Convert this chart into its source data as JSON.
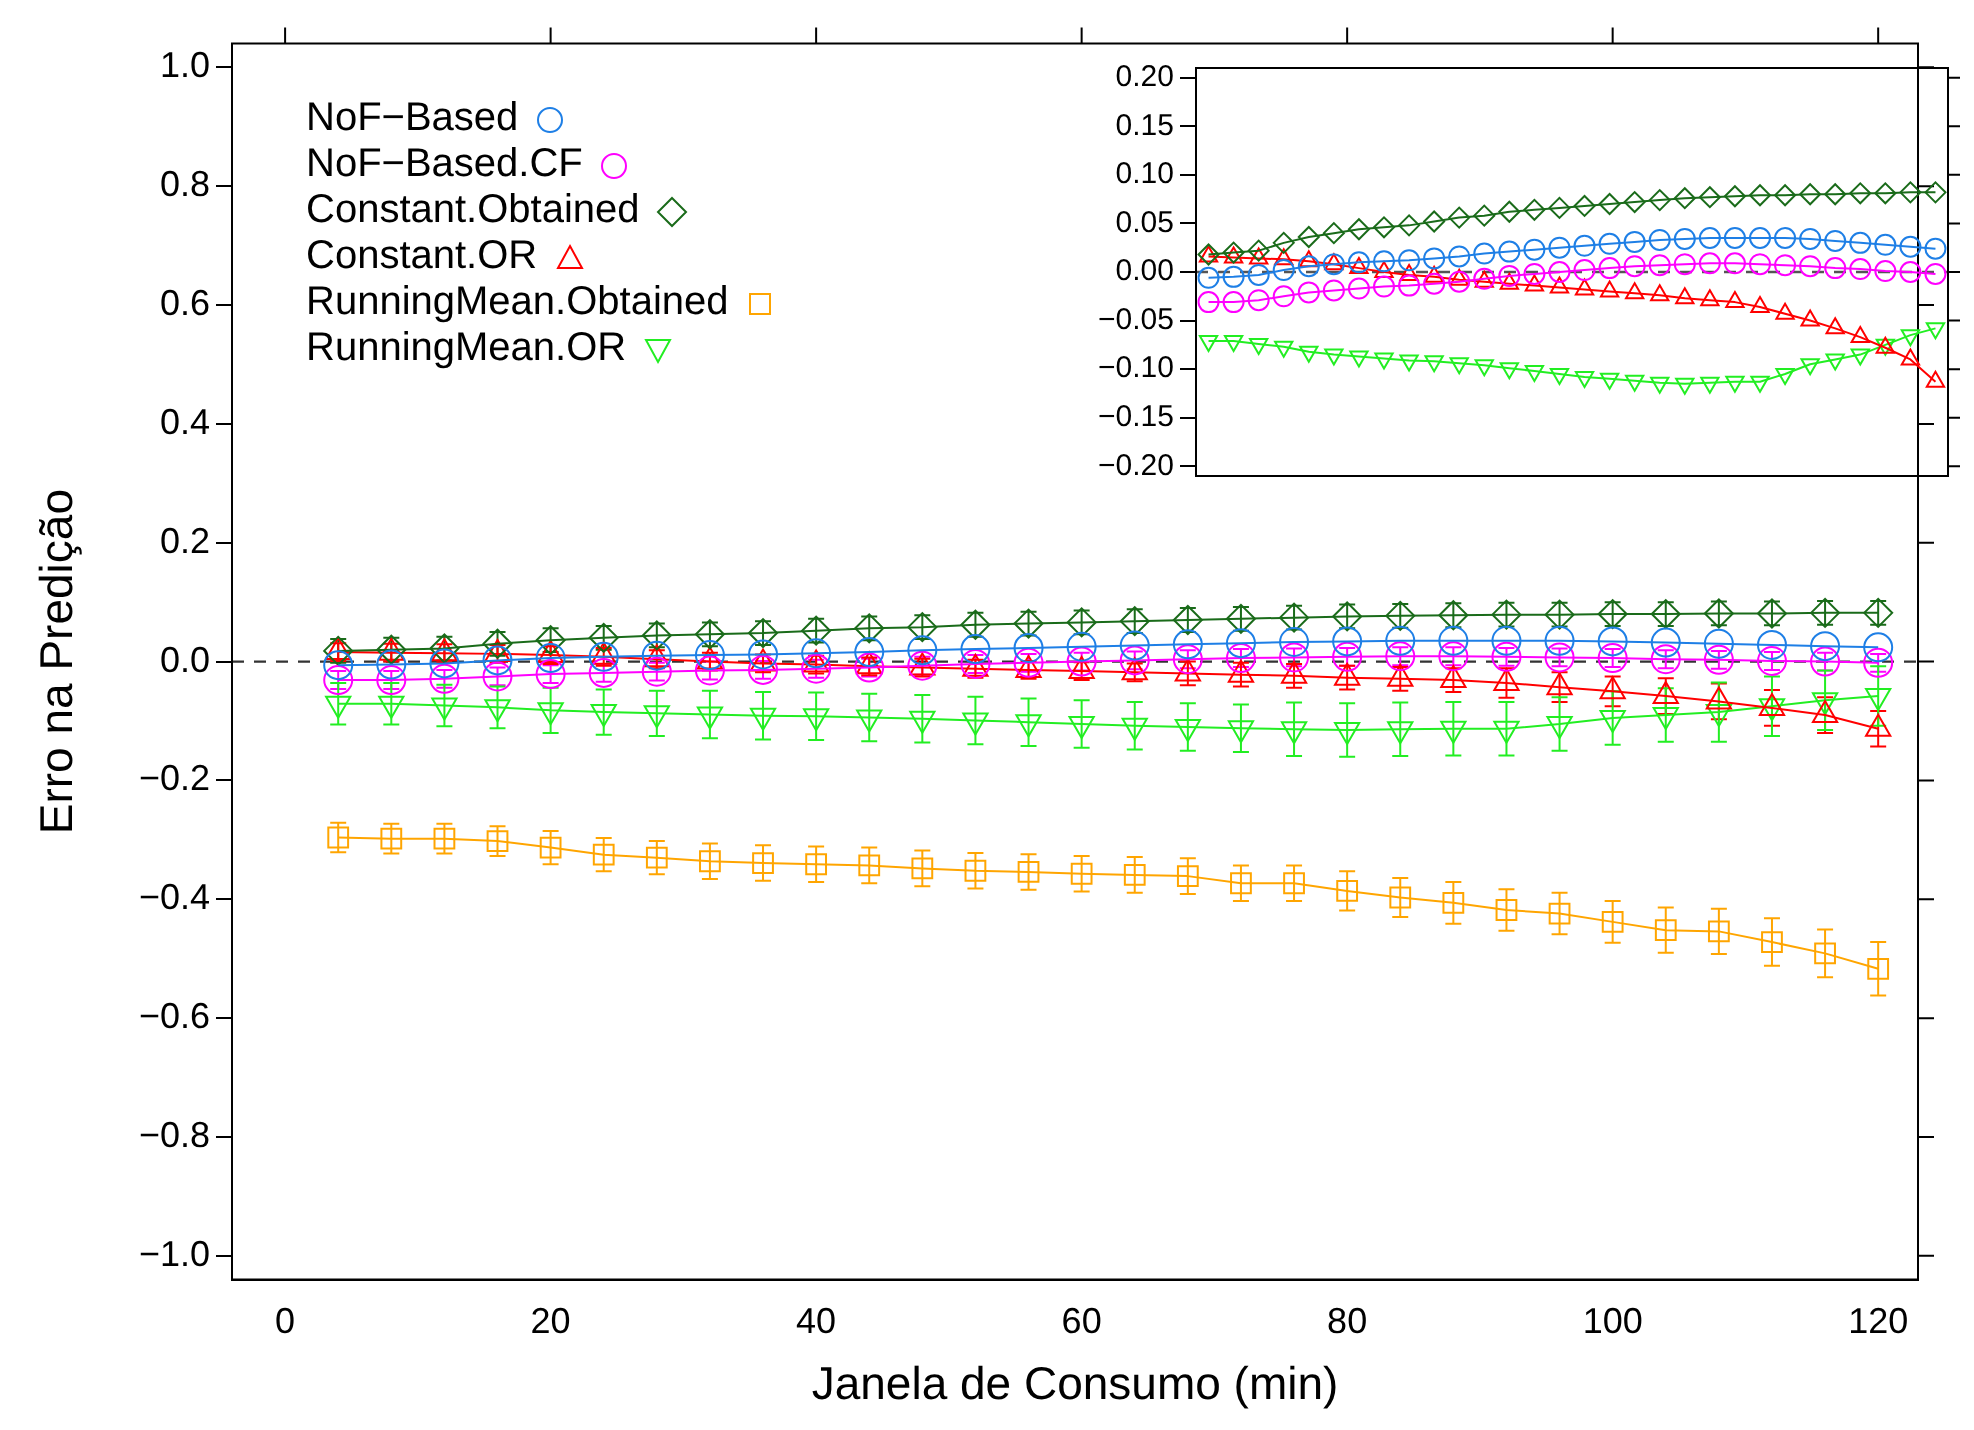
{
  "chart_data": [
    {
      "type": "line",
      "xlabel": "Janela de Consumo (min)",
      "ylabel": "Erro na Predição",
      "x": [
        4,
        8,
        12,
        16,
        20,
        24,
        28,
        32,
        36,
        40,
        44,
        48,
        52,
        56,
        60,
        64,
        68,
        72,
        76,
        80,
        84,
        88,
        92,
        96,
        100,
        104,
        108,
        112,
        116,
        120
      ],
      "xlim": [
        -4,
        123
      ],
      "xticks": [
        0,
        20,
        40,
        60,
        80,
        100,
        120
      ],
      "ylim": [
        -1.04,
        1.04
      ],
      "yticks": [
        {
          "value": -1,
          "label": "−1.0"
        },
        {
          "value": -0.8,
          "label": "−0.8"
        },
        {
          "value": -0.6,
          "label": "−0.6"
        },
        {
          "value": -0.4,
          "label": "−0.4"
        },
        {
          "value": -0.2,
          "label": "−0.2"
        },
        {
          "value": 0,
          "label": "0.0"
        },
        {
          "value": 0.2,
          "label": "0.2"
        },
        {
          "value": 0.4,
          "label": "0.4"
        },
        {
          "value": 0.6,
          "label": "0.6"
        },
        {
          "value": 0.8,
          "label": "0.8"
        },
        {
          "value": 1,
          "label": "1.0"
        }
      ],
      "grid": false,
      "legend": "top left",
      "ref_lines": [
        {
          "axis": "y",
          "value": 0,
          "label": null,
          "color": "#333333",
          "line_style": "dashed"
        }
      ],
      "series": [
        {
          "name": "NoF−Based",
          "color": "#1e7fe6",
          "marker": "circle",
          "values": [
            -0.006,
            -0.005,
            -0.003,
            0.002,
            0.006,
            0.008,
            0.01,
            0.011,
            0.012,
            0.014,
            0.016,
            0.019,
            0.021,
            0.023,
            0.025,
            0.027,
            0.029,
            0.031,
            0.033,
            0.034,
            0.035,
            0.035,
            0.035,
            0.035,
            0.034,
            0.032,
            0.03,
            0.028,
            0.026,
            0.024
          ]
        },
        {
          "name": "NoF−Based.CF",
          "color": "#ff00ff",
          "marker": "circle",
          "values": [
            -0.031,
            -0.031,
            -0.029,
            -0.025,
            -0.021,
            -0.019,
            -0.017,
            -0.015,
            -0.014,
            -0.012,
            -0.01,
            -0.007,
            -0.004,
            -0.002,
            0,
            0.002,
            0.004,
            0.006,
            0.007,
            0.008,
            0.009,
            0.009,
            0.008,
            0.007,
            0.006,
            0.004,
            0.003,
            0.001,
            0,
            -0.002
          ],
          "errors": [
            0.015,
            0.015,
            0.015,
            0.015,
            0.015,
            0.015,
            0.015,
            0.015,
            0.015,
            0.015,
            0.015,
            0.015,
            0.015,
            0.015,
            0.015,
            0.015,
            0.015,
            0.015,
            0.015,
            0.015,
            0.015,
            0.015,
            0.015,
            0.015,
            0.015,
            0.015,
            0.015,
            0.015,
            0.015,
            0.015
          ]
        },
        {
          "name": "Constant.Obtained",
          "color": "#1a6b1a",
          "marker": "diamond",
          "values": [
            0.018,
            0.02,
            0.022,
            0.03,
            0.036,
            0.04,
            0.044,
            0.046,
            0.048,
            0.052,
            0.056,
            0.058,
            0.062,
            0.064,
            0.066,
            0.068,
            0.07,
            0.072,
            0.074,
            0.076,
            0.077,
            0.078,
            0.079,
            0.079,
            0.08,
            0.08,
            0.081,
            0.081,
            0.082,
            0.082
          ],
          "errors": [
            0.02,
            0.02,
            0.02,
            0.02,
            0.02,
            0.02,
            0.02,
            0.02,
            0.02,
            0.02,
            0.02,
            0.02,
            0.02,
            0.02,
            0.02,
            0.02,
            0.02,
            0.02,
            0.02,
            0.02,
            0.02,
            0.02,
            0.02,
            0.02,
            0.02,
            0.02,
            0.02,
            0.02,
            0.02,
            0.02
          ]
        },
        {
          "name": "Constant.OR",
          "color": "#ff0000",
          "marker": "triangle",
          "values": [
            0.016,
            0.015,
            0.014,
            0.013,
            0.011,
            0.008,
            0.004,
            0,
            -0.003,
            -0.005,
            -0.008,
            -0.01,
            -0.012,
            -0.014,
            -0.016,
            -0.018,
            -0.02,
            -0.022,
            -0.024,
            -0.027,
            -0.029,
            -0.031,
            -0.036,
            -0.043,
            -0.05,
            -0.058,
            -0.067,
            -0.078,
            -0.09,
            -0.113
          ],
          "errors": [
            0.015,
            0.015,
            0.015,
            0.015,
            0.015,
            0.015,
            0.015,
            0.015,
            0.015,
            0.015,
            0.015,
            0.015,
            0.015,
            0.015,
            0.015,
            0.015,
            0.02,
            0.02,
            0.02,
            0.02,
            0.02,
            0.02,
            0.025,
            0.025,
            0.025,
            0.03,
            0.03,
            0.03,
            0.03,
            0.03
          ]
        },
        {
          "name": "RunningMean.Obtained",
          "color": "#ffa500",
          "marker": "square",
          "values": [
            -0.296,
            -0.298,
            -0.298,
            -0.302,
            -0.313,
            -0.325,
            -0.33,
            -0.336,
            -0.339,
            -0.341,
            -0.343,
            -0.348,
            -0.352,
            -0.354,
            -0.357,
            -0.359,
            -0.361,
            -0.373,
            -0.373,
            -0.386,
            -0.397,
            -0.406,
            -0.418,
            -0.424,
            -0.438,
            -0.452,
            -0.454,
            -0.472,
            -0.491,
            -0.517
          ],
          "errors": [
            0.025,
            0.025,
            0.025,
            0.025,
            0.028,
            0.028,
            0.028,
            0.03,
            0.03,
            0.03,
            0.03,
            0.03,
            0.03,
            0.03,
            0.03,
            0.03,
            0.03,
            0.03,
            0.03,
            0.033,
            0.033,
            0.035,
            0.035,
            0.035,
            0.035,
            0.038,
            0.038,
            0.04,
            0.04,
            0.045
          ]
        },
        {
          "name": "RunningMean.OR",
          "color": "#22ee22",
          "marker": "triangle-down",
          "values": [
            -0.071,
            -0.071,
            -0.074,
            -0.077,
            -0.082,
            -0.085,
            -0.087,
            -0.089,
            -0.091,
            -0.092,
            -0.094,
            -0.096,
            -0.099,
            -0.102,
            -0.105,
            -0.108,
            -0.11,
            -0.112,
            -0.114,
            -0.115,
            -0.114,
            -0.113,
            -0.113,
            -0.105,
            -0.095,
            -0.09,
            -0.085,
            -0.075,
            -0.065,
            -0.058
          ],
          "errors": [
            0.035,
            0.035,
            0.035,
            0.035,
            0.038,
            0.038,
            0.038,
            0.04,
            0.04,
            0.04,
            0.04,
            0.04,
            0.04,
            0.04,
            0.04,
            0.04,
            0.04,
            0.04,
            0.045,
            0.045,
            0.045,
            0.045,
            0.045,
            0.045,
            0.045,
            0.045,
            0.05,
            0.05,
            0.05,
            0.05
          ]
        }
      ]
    },
    {
      "type": "line",
      "categories": [
        null,
        null,
        null,
        null,
        null,
        null,
        null,
        null,
        null,
        null,
        null,
        null,
        null,
        null,
        null,
        null,
        null,
        null,
        null,
        null,
        null,
        null,
        null,
        null,
        null,
        null,
        null,
        null,
        null,
        null
      ],
      "ylim": [
        -0.21,
        0.21
      ],
      "tick_labels": "y",
      "grid": false,
      "yticks": [
        {
          "value": -0.2,
          "label": "−0.20"
        },
        {
          "value": -0.15,
          "label": "−0.15"
        },
        {
          "value": -0.1,
          "label": "−0.10"
        },
        {
          "value": -0.05,
          "label": "−0.05"
        },
        {
          "value": 0,
          "label": "0.00"
        },
        {
          "value": 0.05,
          "label": "0.05"
        },
        {
          "value": 0.1,
          "label": "0.10"
        },
        {
          "value": 0.15,
          "label": "0.15"
        },
        {
          "value": 0.2,
          "label": "0.20"
        }
      ],
      "ref_lines": [
        {
          "axis": "y",
          "value": 0,
          "label": null,
          "color": "#555555",
          "line_style": "dashed"
        }
      ],
      "series": [
        {
          "color": "#1e7fe6",
          "marker": "circle",
          "values": [
            -0.006,
            -0.005,
            -0.003,
            0.002,
            0.006,
            0.008,
            0.01,
            0.011,
            0.012,
            0.014,
            0.016,
            0.019,
            0.021,
            0.023,
            0.025,
            0.027,
            0.029,
            0.031,
            0.033,
            0.034,
            0.035,
            0.035,
            0.035,
            0.035,
            0.034,
            0.032,
            0.03,
            0.028,
            0.026,
            0.024
          ]
        },
        {
          "color": "#ff00ff",
          "marker": "circle",
          "values": [
            -0.031,
            -0.031,
            -0.029,
            -0.025,
            -0.021,
            -0.019,
            -0.017,
            -0.015,
            -0.014,
            -0.012,
            -0.01,
            -0.007,
            -0.004,
            -0.002,
            0,
            0.002,
            0.004,
            0.006,
            0.007,
            0.008,
            0.009,
            0.009,
            0.008,
            0.007,
            0.006,
            0.004,
            0.003,
            0.001,
            0,
            -0.002
          ]
        },
        {
          "color": "#1a6b1a",
          "marker": "diamond",
          "values": [
            0.018,
            0.02,
            0.022,
            0.03,
            0.036,
            0.04,
            0.044,
            0.046,
            0.048,
            0.052,
            0.056,
            0.058,
            0.062,
            0.064,
            0.066,
            0.068,
            0.07,
            0.072,
            0.074,
            0.076,
            0.077,
            0.078,
            0.079,
            0.079,
            0.08,
            0.08,
            0.081,
            0.081,
            0.082,
            0.082
          ]
        },
        {
          "color": "#ff0000",
          "marker": "triangle",
          "values": [
            0.016,
            0.015,
            0.014,
            0.013,
            0.011,
            0.008,
            0.004,
            0,
            -0.003,
            -0.005,
            -0.008,
            -0.01,
            -0.012,
            -0.014,
            -0.016,
            -0.018,
            -0.02,
            -0.022,
            -0.024,
            -0.027,
            -0.029,
            -0.031,
            -0.036,
            -0.043,
            -0.05,
            -0.058,
            -0.067,
            -0.078,
            -0.09,
            -0.113
          ]
        },
        {
          "color": "#22ee22",
          "marker": "triangle-down",
          "values": [
            -0.071,
            -0.071,
            -0.074,
            -0.077,
            -0.082,
            -0.085,
            -0.087,
            -0.089,
            -0.091,
            -0.092,
            -0.094,
            -0.096,
            -0.099,
            -0.102,
            -0.105,
            -0.108,
            -0.11,
            -0.112,
            -0.114,
            -0.115,
            -0.114,
            -0.113,
            -0.113,
            -0.105,
            -0.095,
            -0.09,
            -0.085,
            -0.075,
            -0.065,
            -0.058
          ]
        }
      ]
    }
  ]
}
